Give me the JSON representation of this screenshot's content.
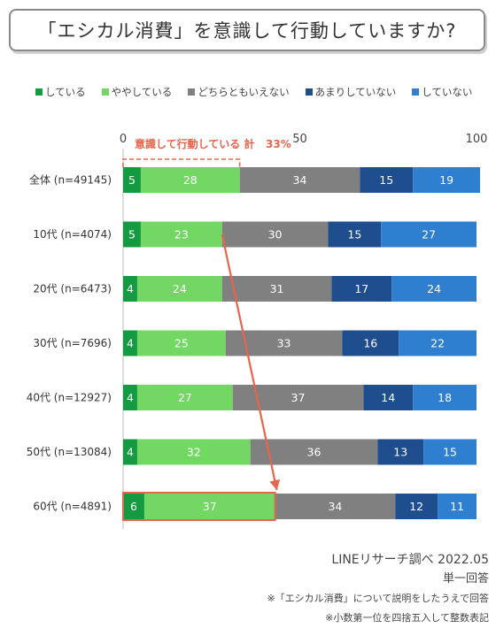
{
  "title": "「エシカル消費」を意識して行動していますか?",
  "chart_data": {
    "type": "bar",
    "orientation": "horizontal",
    "stacked": true,
    "xlim": [
      0,
      100
    ],
    "x_ticks": [
      0,
      50,
      100
    ],
    "categories": [
      "全体 (n=49145)",
      "10代 (n=4074)",
      "20代 (n=6473)",
      "30代 (n=7696)",
      "40代 (n=12927)",
      "50代 (n=13084)",
      "60代 (n=4891)"
    ],
    "series": [
      {
        "name": "している",
        "color": "#149a41",
        "values": [
          5,
          5,
          4,
          4,
          4,
          4,
          6
        ]
      },
      {
        "name": "ややしている",
        "color": "#73d764",
        "values": [
          28,
          23,
          24,
          25,
          27,
          32,
          37
        ]
      },
      {
        "name": "どちらともいえない",
        "color": "#808080",
        "values": [
          34,
          30,
          31,
          33,
          37,
          36,
          34
        ]
      },
      {
        "name": "あまりしていない",
        "color": "#1f4e8e",
        "values": [
          15,
          15,
          17,
          16,
          14,
          13,
          12
        ]
      },
      {
        "name": "していない",
        "color": "#2f7fd0",
        "values": [
          19,
          27,
          24,
          22,
          18,
          15,
          11
        ]
      }
    ],
    "annotation": {
      "text": "意識して行動している 計",
      "value": "33%",
      "color": "#e9644c"
    },
    "highlight_category": "60代 (n=4891)",
    "legend_position": "top"
  },
  "footer": {
    "source": "LINEリサーチ調べ 2022.05",
    "question_type": "単一回答",
    "note1": "※「エシカル消費」について説明をしたうえで回答",
    "note2": "※小数第一位を四捨五入して整数表記"
  }
}
